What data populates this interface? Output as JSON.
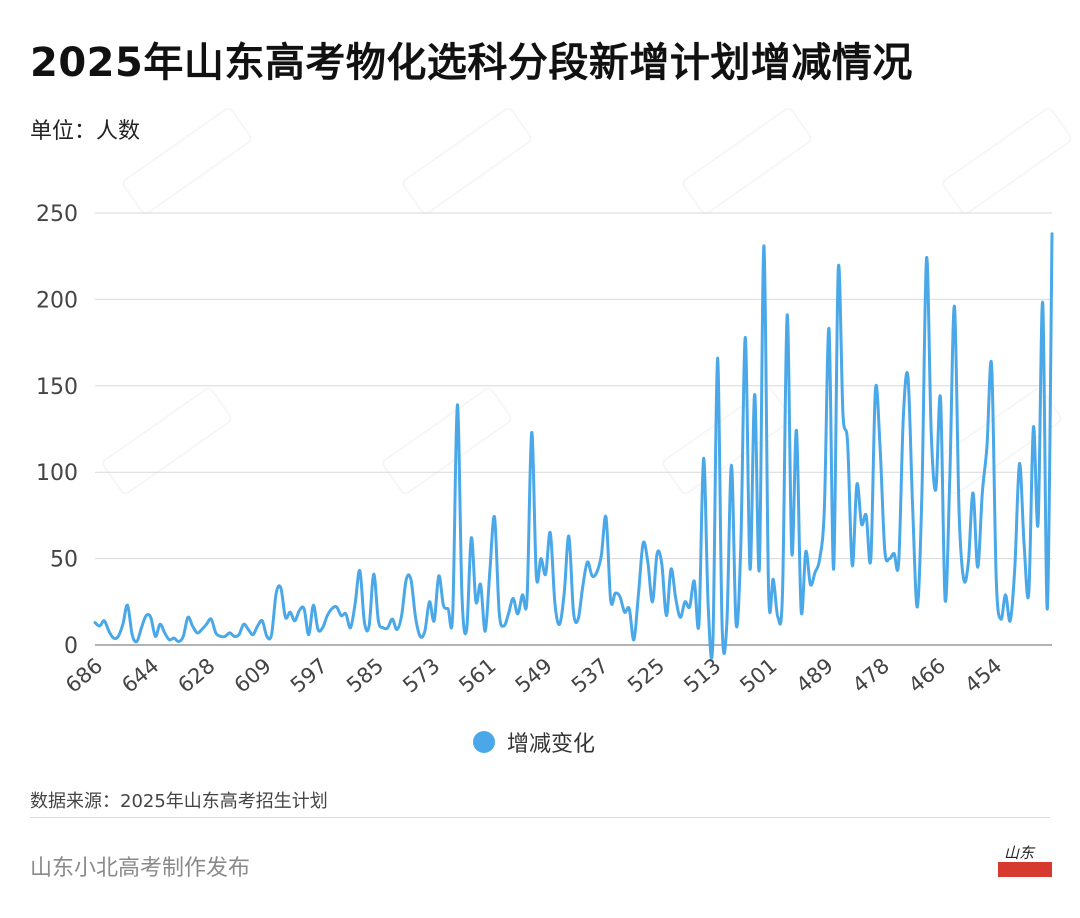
{
  "header": {
    "title": "2025年山东高考物化选科分段新增计划增减情况",
    "unit": "单位：人数"
  },
  "footer": {
    "source": "数据来源：2025年山东高考招生计划",
    "publisher": "山东小北高考制作发布",
    "logo_text": "山东小北高考"
  },
  "colors": {
    "series": "#4aa8e8",
    "grid": "#d9d9d9",
    "axis_text": "#444444"
  },
  "chart_data": {
    "type": "line",
    "title": "2025年山东高考物化选科分段新增计划增减情况",
    "xlabel": "",
    "ylabel": "单位：人数",
    "ylim": [
      0,
      250
    ],
    "yticks": [
      0,
      50,
      100,
      150,
      200,
      250
    ],
    "grid": true,
    "legend_position": "bottom-center",
    "x_start": 686,
    "x_end": 443,
    "xtick_labels": [
      "686",
      "644",
      "628",
      "609",
      "597",
      "585",
      "573",
      "561",
      "549",
      "537",
      "525",
      "513",
      "501",
      "489",
      "478",
      "466",
      "454"
    ],
    "series": [
      {
        "name": "增减变化",
        "values": [
          13,
          11,
          14,
          8,
          4,
          5,
          12,
          23,
          6,
          2,
          10,
          17,
          16,
          5,
          12,
          7,
          3,
          4,
          2,
          5,
          16,
          11,
          7,
          9,
          12,
          15,
          7,
          5,
          5,
          7,
          5,
          6,
          12,
          9,
          6,
          11,
          14,
          5,
          6,
          30,
          33,
          16,
          19,
          14,
          20,
          21,
          6,
          23,
          9,
          10,
          17,
          21,
          22,
          17,
          18,
          10,
          24,
          43,
          13,
          11,
          41,
          14,
          10,
          10,
          15,
          9,
          17,
          38,
          38,
          16,
          5,
          8,
          25,
          14,
          40,
          23,
          21,
          18,
          139,
          28,
          9,
          62,
          25,
          35,
          8,
          43,
          74,
          19,
          11,
          18,
          27,
          18,
          29,
          27,
          123,
          40,
          50,
          41,
          65,
          24,
          12,
          30,
          63,
          19,
          15,
          34,
          48,
          40,
          42,
          52,
          74,
          26,
          30,
          28,
          19,
          21,
          3,
          30,
          59,
          48,
          25,
          53,
          47,
          17,
          44,
          27,
          16,
          25,
          22,
          37,
          12,
          108,
          22,
          2,
          166,
          10,
          12,
          104,
          12,
          56,
          178,
          44,
          145,
          44,
          231,
          31,
          38,
          16,
          31,
          191,
          53,
          124,
          20,
          54,
          35,
          42,
          50,
          79,
          183,
          44,
          218,
          134,
          117,
          46,
          93,
          70,
          75,
          50,
          148,
          114,
          55,
          50,
          53,
          48,
          132,
          155,
          80,
          22,
          88,
          224,
          123,
          90,
          143,
          26,
          97,
          196,
          77,
          38,
          48,
          88,
          45,
          88,
          115,
          162,
          38,
          15,
          29,
          14,
          45,
          105,
          58,
          30,
          126,
          70,
          198,
          21,
          238
        ]
      }
    ]
  }
}
